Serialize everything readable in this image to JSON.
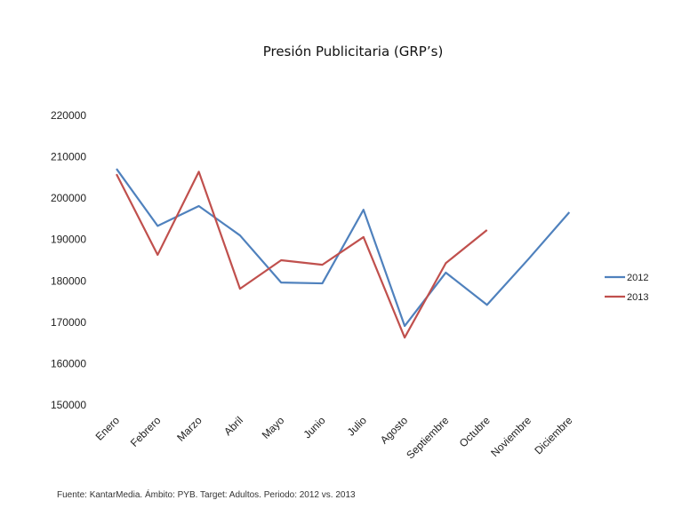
{
  "chart_data": {
    "type": "line",
    "title": "Presión Publicitaria (GRP’s)",
    "xlabel": "",
    "ylabel": "",
    "ylim": [
      150000,
      220000
    ],
    "yticks": [
      150000,
      160000,
      170000,
      180000,
      190000,
      200000,
      210000,
      220000
    ],
    "grid": false,
    "legend": "right",
    "categories": [
      "Enero",
      "Febrero",
      "Marzo",
      "Abril",
      "Mayo",
      "Junio",
      "Julio",
      "Agosto",
      "Septiembre",
      "Octubre",
      "Noviembre",
      "Diciembre"
    ],
    "series": [
      {
        "name": "2012",
        "color": "#4f81bd",
        "values": [
          207100,
          193300,
          198100,
          191000,
          179600,
          179400,
          197200,
          169100,
          182000,
          174200,
          185200,
          196600
        ]
      },
      {
        "name": "2013",
        "color": "#c0504d",
        "values": [
          205800,
          186300,
          206400,
          178100,
          185000,
          183900,
          190600,
          166300,
          184300,
          192300,
          null,
          null
        ]
      }
    ],
    "footnote": "Fuente: KantarMedia. Ámbito: PYB. Target: Adultos. Periodo: 2012 vs. 2013"
  }
}
